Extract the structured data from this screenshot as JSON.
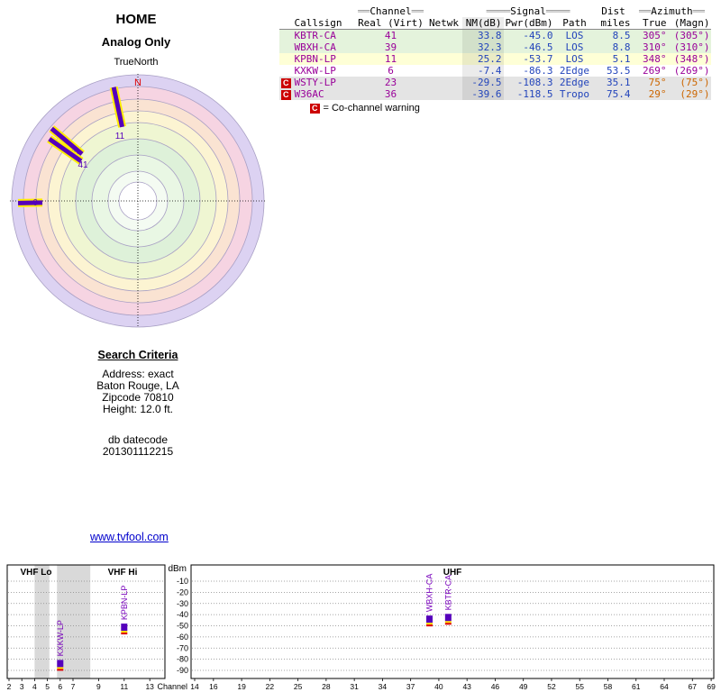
{
  "header": {
    "title": "HOME",
    "subtitle": "Analog Only",
    "north_orientation": "TrueNorth"
  },
  "colors": {
    "purple": "#990099",
    "blue": "#2244bb",
    "orange": "#cc6600",
    "warning_red": "#cc0000",
    "link_blue": "#0000cc",
    "bar_purple": "#5500bb",
    "bar_outline_yellow": "#ffee00"
  },
  "table": {
    "group_headers": {
      "dec_side": "══",
      "dec_side_signal": "════",
      "channel": "Channel",
      "signal": "Signal",
      "dist": "Dist",
      "azimuth": "Azimuth"
    },
    "columns": [
      "Callsign",
      "Real (Virt)",
      "Netwk",
      "NM(dB)",
      "Pwr(dBm)",
      "Path",
      "miles",
      "True",
      "(Magn)"
    ],
    "rows": [
      {
        "callsign": "KBTR-CA",
        "channel": "41",
        "netwk": "",
        "nm_db": "33.8",
        "pwr_dbm": "-45.0",
        "path": "LOS",
        "miles": "8.5",
        "az_true": "305°",
        "az_magn": "(305°)",
        "tier": "strong",
        "az_class": "purple",
        "cochannel": false
      },
      {
        "callsign": "WBXH-CA",
        "channel": "39",
        "netwk": "",
        "nm_db": "32.3",
        "pwr_dbm": "-46.5",
        "path": "LOS",
        "miles": "8.8",
        "az_true": "310°",
        "az_magn": "(310°)",
        "tier": "strong",
        "az_class": "purple",
        "cochannel": false
      },
      {
        "callsign": "KPBN-LP",
        "channel": "11",
        "netwk": "",
        "nm_db": "25.2",
        "pwr_dbm": "-53.7",
        "path": "LOS",
        "miles": "5.1",
        "az_true": "348°",
        "az_magn": "(348°)",
        "tier": "medium",
        "az_class": "purple",
        "cochannel": false
      },
      {
        "callsign": "KXKW-LP",
        "channel": "6",
        "netwk": "",
        "nm_db": "-7.4",
        "pwr_dbm": "-86.3",
        "path": "2Edge",
        "miles": "53.5",
        "az_true": "269°",
        "az_magn": "(269°)",
        "tier": "plain",
        "az_class": "purple",
        "cochannel": false
      },
      {
        "callsign": "WSTY-LP",
        "channel": "23",
        "netwk": "",
        "nm_db": "-29.5",
        "pwr_dbm": "-108.3",
        "path": "2Edge",
        "miles": "35.1",
        "az_true": "75°",
        "az_magn": "(75°)",
        "tier": "weak",
        "az_class": "orange",
        "cochannel": true
      },
      {
        "callsign": "W36AC",
        "channel": "36",
        "netwk": "",
        "nm_db": "-39.6",
        "pwr_dbm": "-118.5",
        "path": "Tropo",
        "miles": "75.4",
        "az_true": "29°",
        "az_magn": "(29°)",
        "tier": "weak",
        "az_class": "orange",
        "cochannel": true
      }
    ],
    "legend": {
      "symbol": "C",
      "text": "= Co-channel warning"
    }
  },
  "search_criteria": {
    "heading": "Search Criteria",
    "lines": [
      "Address: exact",
      "Baton Rouge, LA",
      "Zipcode 70810",
      "Height: 12.0 ft."
    ],
    "db_label": "db datecode",
    "db_value": "201301112215"
  },
  "link": "www.tvfool.com",
  "chart_data": [
    {
      "type": "radar-polar",
      "title": "HOME Analog Only",
      "north_label": "N",
      "north_color": "#dd0000",
      "bar_color": "#5500bb",
      "bar_outline": "#ffee00",
      "label_color": "#5500bb",
      "rings": [
        {
          "r": 140,
          "color": "#dcd2f2"
        },
        {
          "r": 127,
          "color": "#f6d4e2"
        },
        {
          "r": 113,
          "color": "#fae3d2"
        },
        {
          "r": 100,
          "color": "#fcf4d2"
        },
        {
          "r": 87,
          "color": "#eff6d2"
        },
        {
          "r": 69,
          "color": "#def1d9"
        },
        {
          "r": 51,
          "color": "#e9f7e4"
        },
        {
          "r": 33,
          "color": "#f4fbf2"
        },
        {
          "r": 21,
          "color": "#ffffff"
        }
      ],
      "stations": [
        {
          "callsign": "KPBN-LP",
          "label": "11",
          "az_deg": 348,
          "r_inner": 84,
          "r_outer": 129,
          "label_x": 125,
          "label_y": 76
        },
        {
          "callsign": "WBXH-CA",
          "label": "39",
          "az_deg": 310,
          "r_inner": 81,
          "r_outer": 125,
          "label_x": 74,
          "label_y": 95
        },
        {
          "callsign": "KBTR-CA",
          "label": "41",
          "az_deg": 305,
          "r_inner": 77,
          "r_outer": 120,
          "label_x": 84,
          "label_y": 108
        },
        {
          "callsign": "KXKW-LP",
          "label": "6",
          "az_deg": 269,
          "r_inner": 106,
          "r_outer": 133,
          "label_x": 31,
          "label_y": 150
        }
      ]
    },
    {
      "type": "bar",
      "xlabel": "Channel",
      "ylabel": "dBm",
      "ylim": [
        -90,
        -10
      ],
      "yticks": [
        -10,
        -20,
        -30,
        -40,
        -50,
        -60,
        -70,
        -80,
        -90
      ],
      "bands": [
        {
          "label": "VHF Lo"
        },
        {
          "label": "VHF Hi"
        },
        {
          "label": "UHF"
        }
      ],
      "left_channels": [
        2,
        3,
        4,
        5,
        6,
        7,
        9,
        11,
        13
      ],
      "right_channels": [
        14,
        16,
        19,
        22,
        25,
        28,
        31,
        34,
        37,
        40,
        43,
        46,
        49,
        52,
        55,
        58,
        61,
        64,
        67,
        69
      ],
      "shaded_gaps": [
        [
          4.0,
          5.15
        ],
        [
          5.75,
          8.35
        ]
      ],
      "bar_color": "#5500bb",
      "bar_under_yellow": "#ffdd00",
      "bar_under_red": "#dd0000",
      "label_color": "#7700bb",
      "bars": [
        {
          "label": "KXKW-LP",
          "channel": 6,
          "dbm": -86.3
        },
        {
          "label": "KPBN-LP",
          "channel": 11,
          "dbm": -53.7
        },
        {
          "label": "WBXH-CA",
          "channel": 39,
          "dbm": -46.5
        },
        {
          "label": "KBTR-CA",
          "channel": 41,
          "dbm": -45.0
        }
      ]
    }
  ]
}
